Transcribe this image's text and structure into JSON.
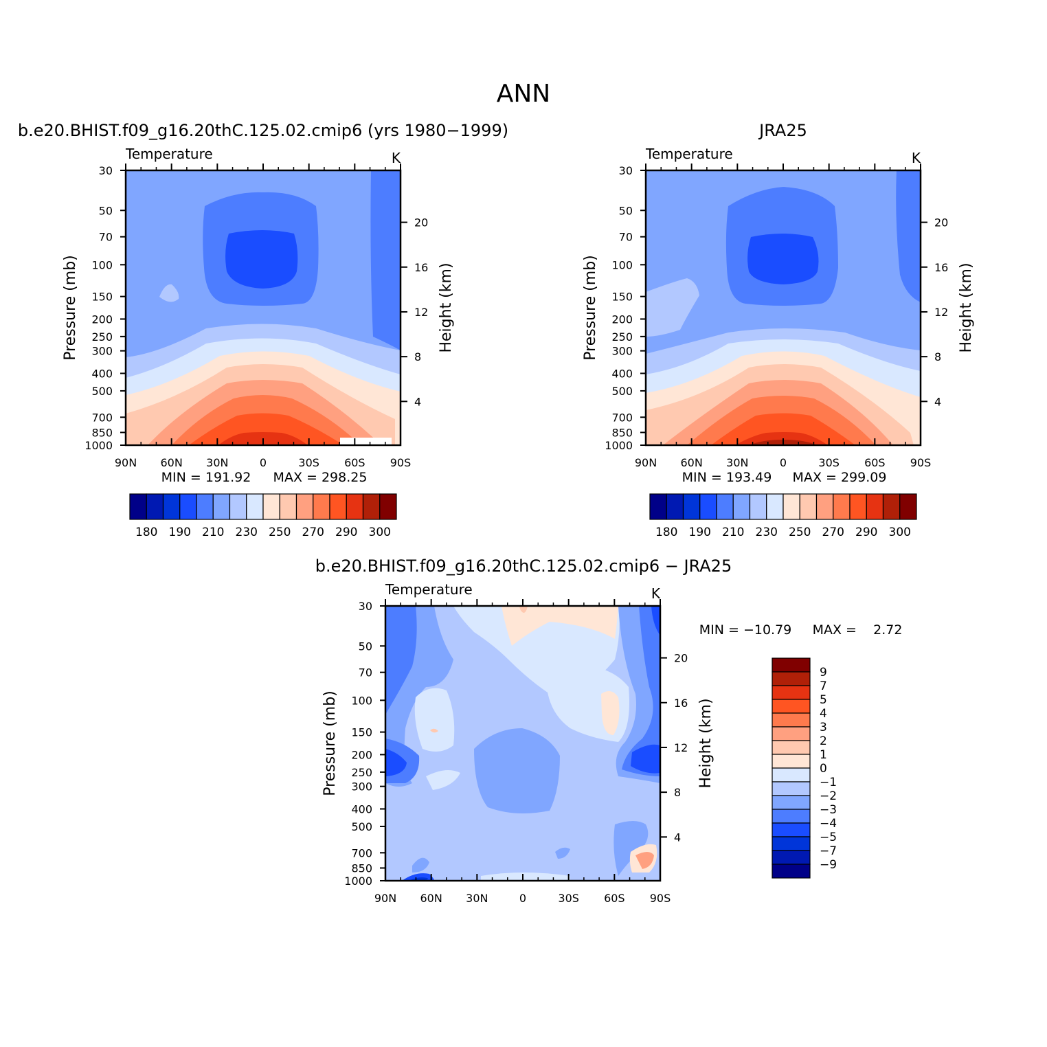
{
  "figure": {
    "title": "ANN",
    "colors": {
      "abs_scale": [
        "#000088",
        "#0019b2",
        "#0035d9",
        "#1a4dff",
        "#4d7dff",
        "#80a6ff",
        "#b2c8ff",
        "#d9e8ff",
        "#ffe6d6",
        "#ffc9b0",
        "#ffa080",
        "#ff7a4d",
        "#ff5522",
        "#e63312",
        "#b02008",
        "#800000"
      ],
      "diff_scale": [
        "#800000",
        "#b02008",
        "#e63312",
        "#ff5522",
        "#ff7a4d",
        "#ffa080",
        "#ffc9b0",
        "#ffe6d6",
        "#d9e8ff",
        "#b2c8ff",
        "#80a6ff",
        "#4d7dff",
        "#1a4dff",
        "#0035d9",
        "#0019b2",
        "#000088"
      ]
    }
  },
  "chart_data": [
    {
      "type": "contour",
      "title": "b.e20.BHIST.f09_g16.20thC.125.02.cmip6 (yrs 1980−1999)",
      "left_string": "Temperature",
      "right_string": "K",
      "ylabel": "Pressure (mb)",
      "ylabel_right": "Height (km)",
      "x_ticks": [
        "90N",
        "60N",
        "30N",
        "0",
        "30S",
        "60S",
        "90S"
      ],
      "y_ticks": [
        "30",
        "50",
        "70",
        "100",
        "150",
        "200",
        "250",
        "300",
        "400",
        "500",
        "700",
        "850",
        "1000"
      ],
      "y_ticks_right": [
        "20",
        "16",
        "12",
        "8",
        "4"
      ],
      "min_label": "MIN = 191.92",
      "max_label": "MAX = 298.25",
      "min": 191.92,
      "max": 298.25,
      "colorbar_labels": [
        "180",
        "190",
        "210",
        "230",
        "250",
        "270",
        "290",
        "300"
      ]
    },
    {
      "type": "contour",
      "title": "JRA25",
      "left_string": "Temperature",
      "right_string": "K",
      "ylabel": "Pressure (mb)",
      "ylabel_right": "Height (km)",
      "x_ticks": [
        "90N",
        "60N",
        "30N",
        "0",
        "30S",
        "60S",
        "90S"
      ],
      "y_ticks": [
        "30",
        "50",
        "70",
        "100",
        "150",
        "200",
        "250",
        "300",
        "400",
        "500",
        "700",
        "850",
        "1000"
      ],
      "y_ticks_right": [
        "20",
        "16",
        "12",
        "8",
        "4"
      ],
      "min_label": "MIN = 193.49",
      "max_label": "MAX = 299.09",
      "min": 193.49,
      "max": 299.09,
      "colorbar_labels": [
        "180",
        "190",
        "210",
        "230",
        "250",
        "270",
        "290",
        "300"
      ]
    },
    {
      "type": "contour",
      "title": "b.e20.BHIST.f09_g16.20thC.125.02.cmip6 − JRA25",
      "left_string": "Temperature",
      "right_string": "K",
      "ylabel": "Pressure (mb)",
      "ylabel_right": "Height (km)",
      "x_ticks": [
        "90N",
        "60N",
        "30N",
        "0",
        "30S",
        "60S",
        "90S"
      ],
      "y_ticks": [
        "30",
        "50",
        "70",
        "100",
        "150",
        "200",
        "250",
        "300",
        "400",
        "500",
        "700",
        "850",
        "1000"
      ],
      "y_ticks_right": [
        "20",
        "16",
        "12",
        "8",
        "4"
      ],
      "min_label": "MIN = −10.79",
      "max_label": "MAX =    2.72",
      "min": -10.79,
      "max": 2.72,
      "colorbar_labels": [
        "9",
        "7",
        "5",
        "4",
        "3",
        "2",
        "1",
        "0",
        "−1",
        "−2",
        "−3",
        "−4",
        "−5",
        "−7",
        "−9"
      ]
    }
  ]
}
